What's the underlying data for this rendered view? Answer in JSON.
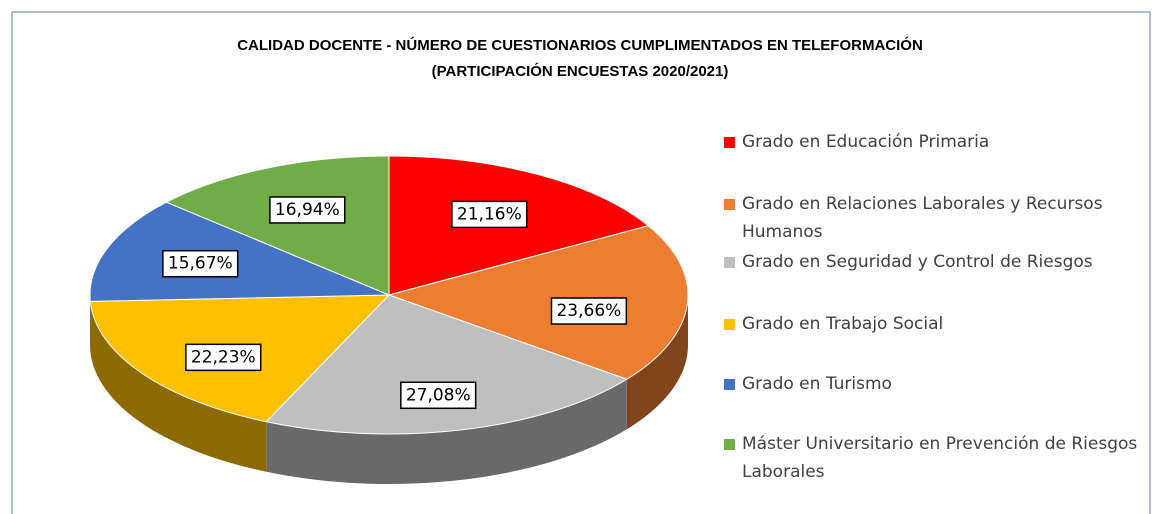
{
  "chart_data": {
    "type": "pie3d",
    "title": "CALIDAD DOCENTE - NÚMERO DE CUESTIONARIOS CUMPLIMENTADOS EN TELEFORMACIÓN",
    "subtitle": "(PARTICIPACIÓN ENCUESTAS 2020/2021)",
    "categories": [
      "Grado en Educación Primaria",
      "Grado en Relaciones Laborales y Recursos Humanos",
      "Grado en Seguridad y Control de Riesgos",
      "Grado en Trabajo Social",
      "Grado en Turismo",
      "Máster Universitario en Prevención de Riesgos Laborales"
    ],
    "values": [
      21.16,
      23.66,
      27.08,
      22.23,
      15.67,
      16.94
    ],
    "value_labels": [
      "21,16%",
      "23,66%",
      "27,08%",
      "22,23%",
      "15,67%",
      "16,94%"
    ],
    "colors": [
      "#ff0000",
      "#ed7d31",
      "#bfbfbf",
      "#ffc000",
      "#4472c4",
      "#70ad47"
    ],
    "legend": "right"
  }
}
